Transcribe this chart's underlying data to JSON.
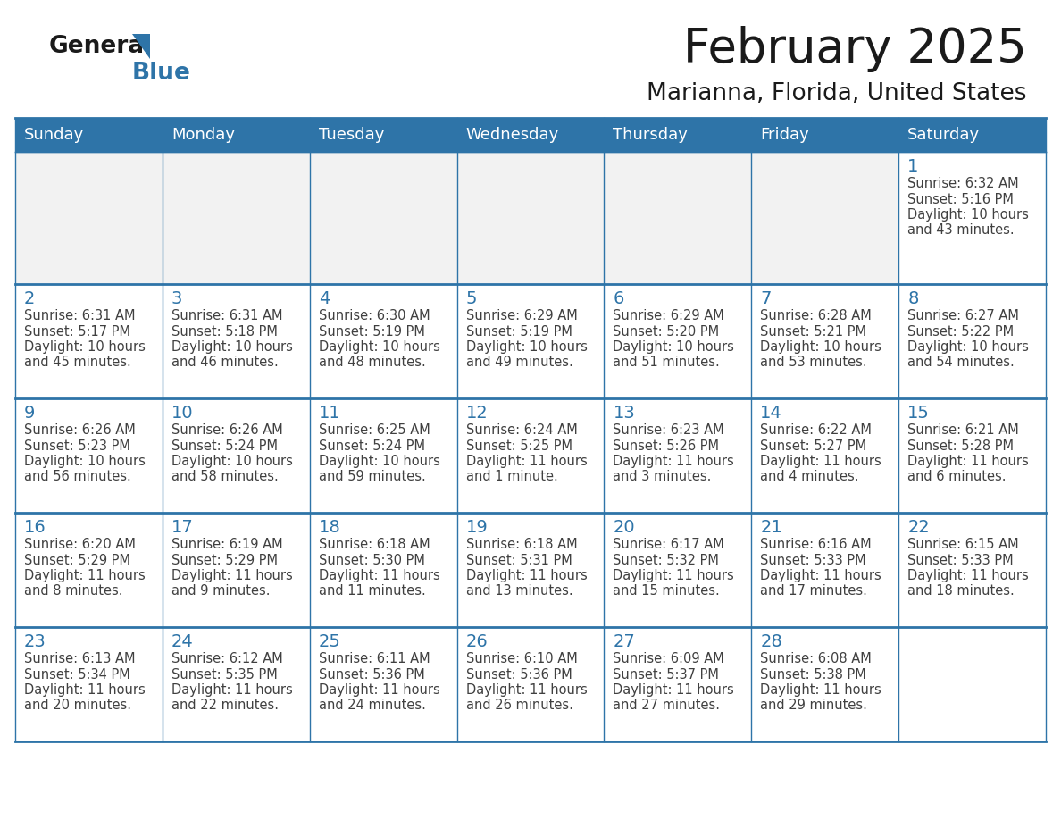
{
  "title": "February 2025",
  "subtitle": "Marianna, Florida, United States",
  "days_of_week": [
    "Sunday",
    "Monday",
    "Tuesday",
    "Wednesday",
    "Thursday",
    "Friday",
    "Saturday"
  ],
  "header_bg": "#2E74A8",
  "header_text": "#FFFFFF",
  "cell_bg_white": "#FFFFFF",
  "cell_bg_gray": "#F2F2F2",
  "border_color": "#2E74A8",
  "day_num_color": "#2E74A8",
  "text_color": "#404040",
  "title_color": "#1a1a1a",
  "calendar_data": [
    [
      null,
      null,
      null,
      null,
      null,
      null,
      {
        "day": 1,
        "sunrise": "6:32 AM",
        "sunset": "5:16 PM",
        "daylight": "10 hours and 43 minutes."
      }
    ],
    [
      {
        "day": 2,
        "sunrise": "6:31 AM",
        "sunset": "5:17 PM",
        "daylight": "10 hours and 45 minutes."
      },
      {
        "day": 3,
        "sunrise": "6:31 AM",
        "sunset": "5:18 PM",
        "daylight": "10 hours and 46 minutes."
      },
      {
        "day": 4,
        "sunrise": "6:30 AM",
        "sunset": "5:19 PM",
        "daylight": "10 hours and 48 minutes."
      },
      {
        "day": 5,
        "sunrise": "6:29 AM",
        "sunset": "5:19 PM",
        "daylight": "10 hours and 49 minutes."
      },
      {
        "day": 6,
        "sunrise": "6:29 AM",
        "sunset": "5:20 PM",
        "daylight": "10 hours and 51 minutes."
      },
      {
        "day": 7,
        "sunrise": "6:28 AM",
        "sunset": "5:21 PM",
        "daylight": "10 hours and 53 minutes."
      },
      {
        "day": 8,
        "sunrise": "6:27 AM",
        "sunset": "5:22 PM",
        "daylight": "10 hours and 54 minutes."
      }
    ],
    [
      {
        "day": 9,
        "sunrise": "6:26 AM",
        "sunset": "5:23 PM",
        "daylight": "10 hours and 56 minutes."
      },
      {
        "day": 10,
        "sunrise": "6:26 AM",
        "sunset": "5:24 PM",
        "daylight": "10 hours and 58 minutes."
      },
      {
        "day": 11,
        "sunrise": "6:25 AM",
        "sunset": "5:24 PM",
        "daylight": "10 hours and 59 minutes."
      },
      {
        "day": 12,
        "sunrise": "6:24 AM",
        "sunset": "5:25 PM",
        "daylight": "11 hours and 1 minute."
      },
      {
        "day": 13,
        "sunrise": "6:23 AM",
        "sunset": "5:26 PM",
        "daylight": "11 hours and 3 minutes."
      },
      {
        "day": 14,
        "sunrise": "6:22 AM",
        "sunset": "5:27 PM",
        "daylight": "11 hours and 4 minutes."
      },
      {
        "day": 15,
        "sunrise": "6:21 AM",
        "sunset": "5:28 PM",
        "daylight": "11 hours and 6 minutes."
      }
    ],
    [
      {
        "day": 16,
        "sunrise": "6:20 AM",
        "sunset": "5:29 PM",
        "daylight": "11 hours and 8 minutes."
      },
      {
        "day": 17,
        "sunrise": "6:19 AM",
        "sunset": "5:29 PM",
        "daylight": "11 hours and 9 minutes."
      },
      {
        "day": 18,
        "sunrise": "6:18 AM",
        "sunset": "5:30 PM",
        "daylight": "11 hours and 11 minutes."
      },
      {
        "day": 19,
        "sunrise": "6:18 AM",
        "sunset": "5:31 PM",
        "daylight": "11 hours and 13 minutes."
      },
      {
        "day": 20,
        "sunrise": "6:17 AM",
        "sunset": "5:32 PM",
        "daylight": "11 hours and 15 minutes."
      },
      {
        "day": 21,
        "sunrise": "6:16 AM",
        "sunset": "5:33 PM",
        "daylight": "11 hours and 17 minutes."
      },
      {
        "day": 22,
        "sunrise": "6:15 AM",
        "sunset": "5:33 PM",
        "daylight": "11 hours and 18 minutes."
      }
    ],
    [
      {
        "day": 23,
        "sunrise": "6:13 AM",
        "sunset": "5:34 PM",
        "daylight": "11 hours and 20 minutes."
      },
      {
        "day": 24,
        "sunrise": "6:12 AM",
        "sunset": "5:35 PM",
        "daylight": "11 hours and 22 minutes."
      },
      {
        "day": 25,
        "sunrise": "6:11 AM",
        "sunset": "5:36 PM",
        "daylight": "11 hours and 24 minutes."
      },
      {
        "day": 26,
        "sunrise": "6:10 AM",
        "sunset": "5:36 PM",
        "daylight": "11 hours and 26 minutes."
      },
      {
        "day": 27,
        "sunrise": "6:09 AM",
        "sunset": "5:37 PM",
        "daylight": "11 hours and 27 minutes."
      },
      {
        "day": 28,
        "sunrise": "6:08 AM",
        "sunset": "5:38 PM",
        "daylight": "11 hours and 29 minutes."
      },
      null
    ]
  ]
}
